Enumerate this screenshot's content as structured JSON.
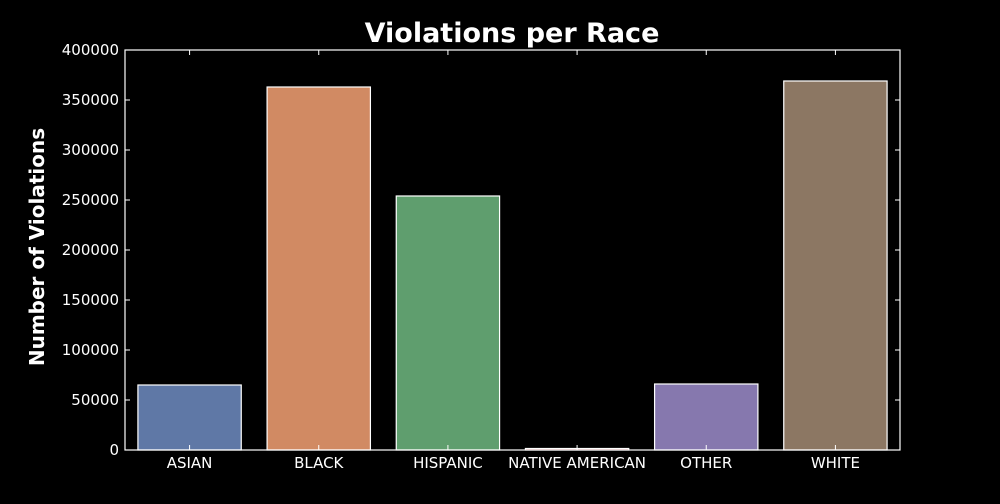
{
  "chart_data": {
    "type": "bar",
    "title": "Violations per Race",
    "xlabel": "",
    "ylabel": "Number of Violations",
    "categories": [
      "ASIAN",
      "BLACK",
      "HISPANIC",
      "NATIVE AMERICAN",
      "OTHER",
      "WHITE"
    ],
    "values": [
      65000,
      363000,
      254000,
      1500,
      66000,
      369000
    ],
    "colors": [
      "#5f78a6",
      "#d18a63",
      "#5f9e6e",
      "#b55d60",
      "#8678ae",
      "#8c7763"
    ],
    "ylim": [
      0,
      400000
    ],
    "yticks": [
      "0",
      "50000",
      "100000",
      "150000",
      "200000",
      "250000",
      "300000",
      "350000",
      "400000"
    ],
    "grid": false,
    "background": "#000000",
    "text_color": "#ffffff"
  }
}
